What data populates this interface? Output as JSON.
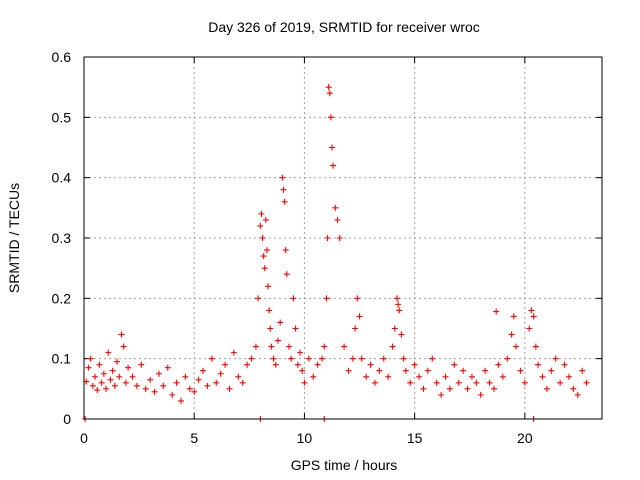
{
  "chart_data": {
    "type": "scatter",
    "title": "Day 326 of 2019, SRMTID for receiver wroc",
    "xlabel": "GPS time / hours",
    "ylabel": "SRMTID / TECUs",
    "xlim": [
      0,
      23.5
    ],
    "ylim": [
      0,
      0.6
    ],
    "xticks": [
      0,
      5,
      10,
      15,
      20
    ],
    "xtick_labels": [
      "0",
      "5",
      "10",
      "15",
      "20"
    ],
    "yticks": [
      0,
      0.1,
      0.2,
      0.3,
      0.4,
      0.5,
      0.6
    ],
    "ytick_labels": [
      "0",
      "0.1",
      "0.2",
      "0.3",
      "0.4",
      "0.5",
      "0.6"
    ],
    "grid": true,
    "legend": "none",
    "marker": "plus",
    "color": "#ff0000",
    "series": [
      {
        "name": "SRMTID",
        "x": [
          0.1,
          0.2,
          0.3,
          0.4,
          0.5,
          0.6,
          0.7,
          0.8,
          0.9,
          1.0,
          1.1,
          1.2,
          1.3,
          1.4,
          1.5,
          1.6,
          1.7,
          1.8,
          1.9,
          2.0,
          2.2,
          2.4,
          2.6,
          2.8,
          3.0,
          3.2,
          3.4,
          3.6,
          3.8,
          4.0,
          4.2,
          4.4,
          4.6,
          4.8,
          5.0,
          5.2,
          5.4,
          5.6,
          5.8,
          6.0,
          6.2,
          6.4,
          6.6,
          6.8,
          7.0,
          7.2,
          7.4,
          7.6,
          7.8,
          7.9,
          8.0,
          8.05,
          8.1,
          8.15,
          8.2,
          8.25,
          8.3,
          8.35,
          8.4,
          8.45,
          8.5,
          8.6,
          8.7,
          8.8,
          8.9,
          9.0,
          9.05,
          9.1,
          9.15,
          9.2,
          9.3,
          9.4,
          9.5,
          9.6,
          9.7,
          9.8,
          9.9,
          10.0,
          10.2,
          10.4,
          10.6,
          10.8,
          10.9,
          11.0,
          11.05,
          11.1,
          11.15,
          11.2,
          11.25,
          11.3,
          11.4,
          11.5,
          11.6,
          11.8,
          12.0,
          12.2,
          12.3,
          12.4,
          12.5,
          12.6,
          12.8,
          13.0,
          13.2,
          13.4,
          13.6,
          13.8,
          14.0,
          14.1,
          14.2,
          14.25,
          14.3,
          14.4,
          14.5,
          14.6,
          14.8,
          15.0,
          15.2,
          15.4,
          15.6,
          15.8,
          16.0,
          16.2,
          16.4,
          16.6,
          16.8,
          17.0,
          17.2,
          17.4,
          17.6,
          17.8,
          18.0,
          18.2,
          18.4,
          18.6,
          18.7,
          18.8,
          19.0,
          19.2,
          19.4,
          19.5,
          19.6,
          19.8,
          20.0,
          20.2,
          20.3,
          20.4,
          20.5,
          20.6,
          20.8,
          21.0,
          21.2,
          21.4,
          21.6,
          21.8,
          22.0,
          22.2,
          22.4,
          22.6,
          22.8,
          0.05,
          8.0,
          10.9,
          20.4
        ],
        "y": [
          0.062,
          0.085,
          0.1,
          0.055,
          0.07,
          0.048,
          0.09,
          0.06,
          0.075,
          0.05,
          0.11,
          0.065,
          0.08,
          0.055,
          0.095,
          0.07,
          0.14,
          0.12,
          0.06,
          0.085,
          0.07,
          0.055,
          0.09,
          0.05,
          0.065,
          0.045,
          0.075,
          0.055,
          0.085,
          0.04,
          0.06,
          0.03,
          0.07,
          0.05,
          0.045,
          0.065,
          0.08,
          0.055,
          0.1,
          0.06,
          0.075,
          0.09,
          0.05,
          0.11,
          0.07,
          0.06,
          0.09,
          0.1,
          0.12,
          0.2,
          0.32,
          0.34,
          0.3,
          0.27,
          0.25,
          0.33,
          0.28,
          0.22,
          0.18,
          0.15,
          0.12,
          0.1,
          0.09,
          0.13,
          0.16,
          0.4,
          0.38,
          0.36,
          0.28,
          0.24,
          0.12,
          0.1,
          0.2,
          0.15,
          0.09,
          0.11,
          0.08,
          0.06,
          0.1,
          0.07,
          0.09,
          0.1,
          0.12,
          0.2,
          0.3,
          0.55,
          0.54,
          0.5,
          0.45,
          0.42,
          0.35,
          0.33,
          0.3,
          0.12,
          0.08,
          0.1,
          0.15,
          0.2,
          0.17,
          0.1,
          0.07,
          0.09,
          0.06,
          0.08,
          0.1,
          0.07,
          0.12,
          0.15,
          0.2,
          0.19,
          0.18,
          0.14,
          0.1,
          0.08,
          0.06,
          0.09,
          0.07,
          0.05,
          0.08,
          0.1,
          0.06,
          0.04,
          0.07,
          0.05,
          0.09,
          0.06,
          0.08,
          0.05,
          0.07,
          0.06,
          0.04,
          0.08,
          0.06,
          0.05,
          0.178,
          0.09,
          0.07,
          0.1,
          0.14,
          0.17,
          0.12,
          0.08,
          0.06,
          0.15,
          0.18,
          0.17,
          0.12,
          0.09,
          0.07,
          0.05,
          0.08,
          0.1,
          0.06,
          0.09,
          0.07,
          0.05,
          0.04,
          0.08,
          0.06,
          0.0,
          0.0,
          0.0,
          0.0
        ]
      }
    ]
  }
}
